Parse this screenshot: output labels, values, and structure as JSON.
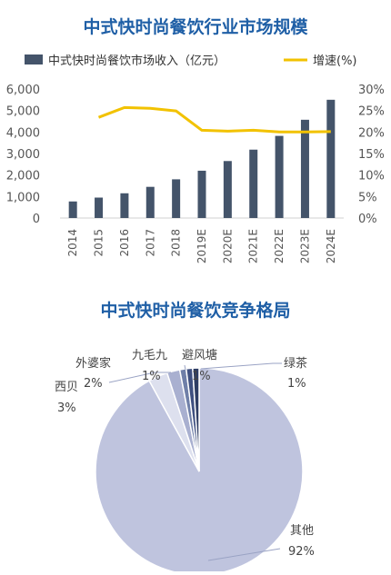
{
  "chart_data": [
    {
      "type": "bar",
      "title": "中式快时尚餐饮行业市场规模",
      "categories": [
        "2014",
        "2015",
        "2016",
        "2017",
        "2018",
        "2019E",
        "2020E",
        "2021E",
        "2022E",
        "2023E",
        "2024E"
      ],
      "series": [
        {
          "name": "中式快时尚餐饮市场收入（亿元）",
          "kind": "bar",
          "axis": "left",
          "color": "#44546a",
          "values": [
            770,
            950,
            1150,
            1450,
            1800,
            2200,
            2650,
            3180,
            3820,
            4570,
            5500
          ]
        },
        {
          "name": "增速(%)",
          "kind": "line",
          "axis": "right",
          "color": "#f2c200",
          "values": [
            null,
            23.4,
            25.7,
            25.5,
            24.9,
            20.4,
            20.2,
            20.4,
            20.0,
            20.0,
            20.1
          ]
        }
      ],
      "y_left": {
        "lim": [
          0,
          6000
        ],
        "ticks": [
          "0",
          "1,000",
          "2,000",
          "3,000",
          "4,000",
          "5,000",
          "6,000"
        ]
      },
      "y_right": {
        "lim": [
          0,
          30
        ],
        "ticks": [
          "0%",
          "5%",
          "10%",
          "15%",
          "20%",
          "25%",
          "30%"
        ]
      },
      "grid": false,
      "legend": "top"
    },
    {
      "type": "pie",
      "title": "中式快时尚餐饮竞争格局",
      "slices": [
        {
          "label": "其他",
          "pct_label": "92%",
          "value": 92,
          "color": "#bfc4de"
        },
        {
          "label": "西贝",
          "pct_label": "3%",
          "value": 3,
          "color": "#dde0ee"
        },
        {
          "label": "外婆家",
          "pct_label": "2%",
          "value": 2,
          "color": "#a9b0d0"
        },
        {
          "label": "九毛九",
          "pct_label": "1%",
          "value": 1,
          "color": "#6f7fa8"
        },
        {
          "label": "避风塘",
          "pct_label": "1%",
          "value": 1,
          "color": "#3f5080"
        },
        {
          "label": "绿茶",
          "pct_label": "1%",
          "value": 1,
          "color": "#2e3d63"
        }
      ]
    }
  ]
}
